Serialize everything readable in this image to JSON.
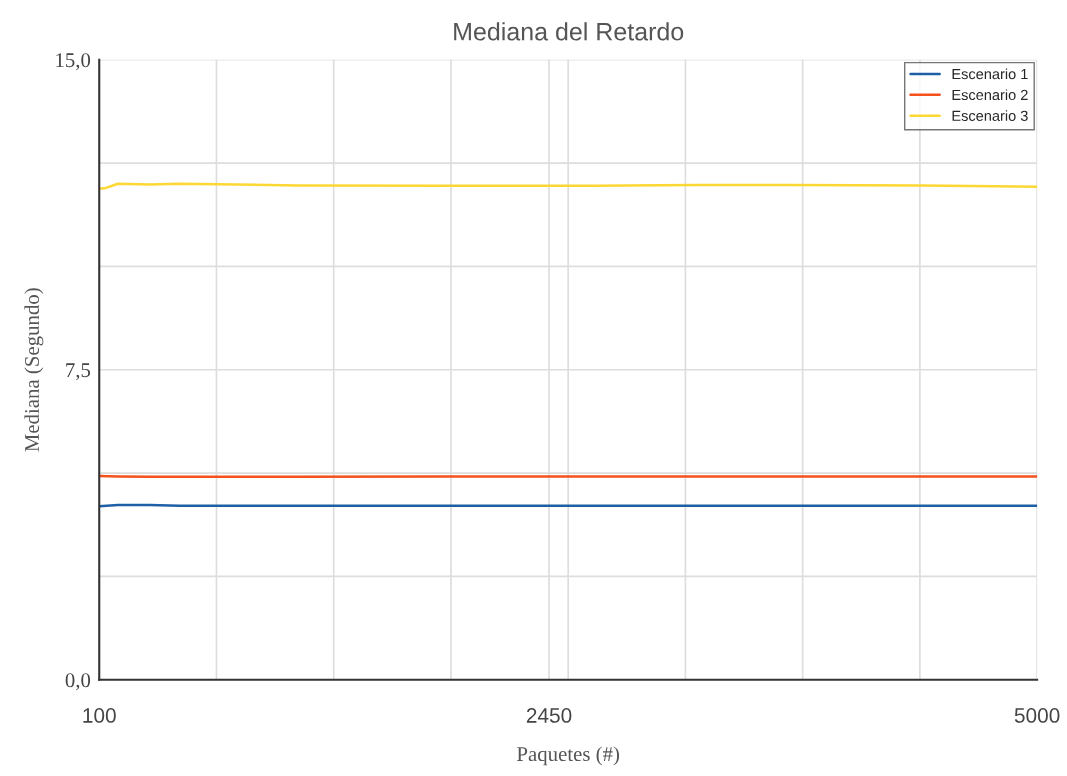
{
  "chart_data": {
    "type": "line",
    "title": "Mediana del Retardo",
    "xlabel": "Paquetes (#)",
    "ylabel": "Mediana (Segundo)",
    "series": [
      {
        "name": "Escenario 1",
        "color": "#1f5fa6",
        "x": [
          100,
          198,
          364,
          519,
          1139,
          1914,
          2690,
          3723,
          4395,
          5000
        ],
        "values": [
          4.2,
          4.23,
          4.23,
          4.21,
          4.21,
          4.21,
          4.21,
          4.21,
          4.21,
          4.21
        ]
      },
      {
        "name": "Escenario 2",
        "color": "#f4511e",
        "x": [
          100,
          198,
          364,
          519,
          1139,
          1914,
          2690,
          3723,
          4395,
          5000
        ],
        "values": [
          4.93,
          4.92,
          4.91,
          4.91,
          4.91,
          4.92,
          4.92,
          4.92,
          4.92,
          4.92
        ]
      },
      {
        "name": "Escenario 3",
        "color": "#fdd835",
        "x": [
          100,
          136,
          198,
          364,
          519,
          1139,
          1914,
          2690,
          3206,
          3723,
          4395,
          5000
        ],
        "values": [
          11.88,
          11.9,
          12.0,
          11.98,
          12.0,
          11.96,
          11.95,
          11.95,
          11.97,
          11.97,
          11.96,
          11.93
        ]
      }
    ],
    "xlim": [
      100,
      5000
    ],
    "xticks": [
      100,
      {
        "value": 712.5,
        "label": null
      },
      {
        "value": 1325,
        "label": null
      },
      {
        "value": 1937.5,
        "label": null
      },
      2450,
      {
        "value": 2550,
        "label": null
      },
      {
        "value": 3162.5,
        "label": null
      },
      {
        "value": 3775,
        "label": null
      },
      {
        "value": 4387.5,
        "label": null
      },
      5000
    ],
    "ylim": [
      0,
      15
    ],
    "yticks": [
      {
        "value": 0,
        "label": "0,0"
      },
      {
        "value": 2.5,
        "label": null
      },
      {
        "value": 5,
        "label": null
      },
      {
        "value": 7.5,
        "label": "7,5"
      },
      {
        "value": 10,
        "label": null
      },
      {
        "value": 12.5,
        "label": null
      },
      {
        "value": 15,
        "label": "15,0"
      }
    ],
    "grid": true,
    "legend": "top right",
    "marker": "none",
    "line_style": "solid"
  }
}
